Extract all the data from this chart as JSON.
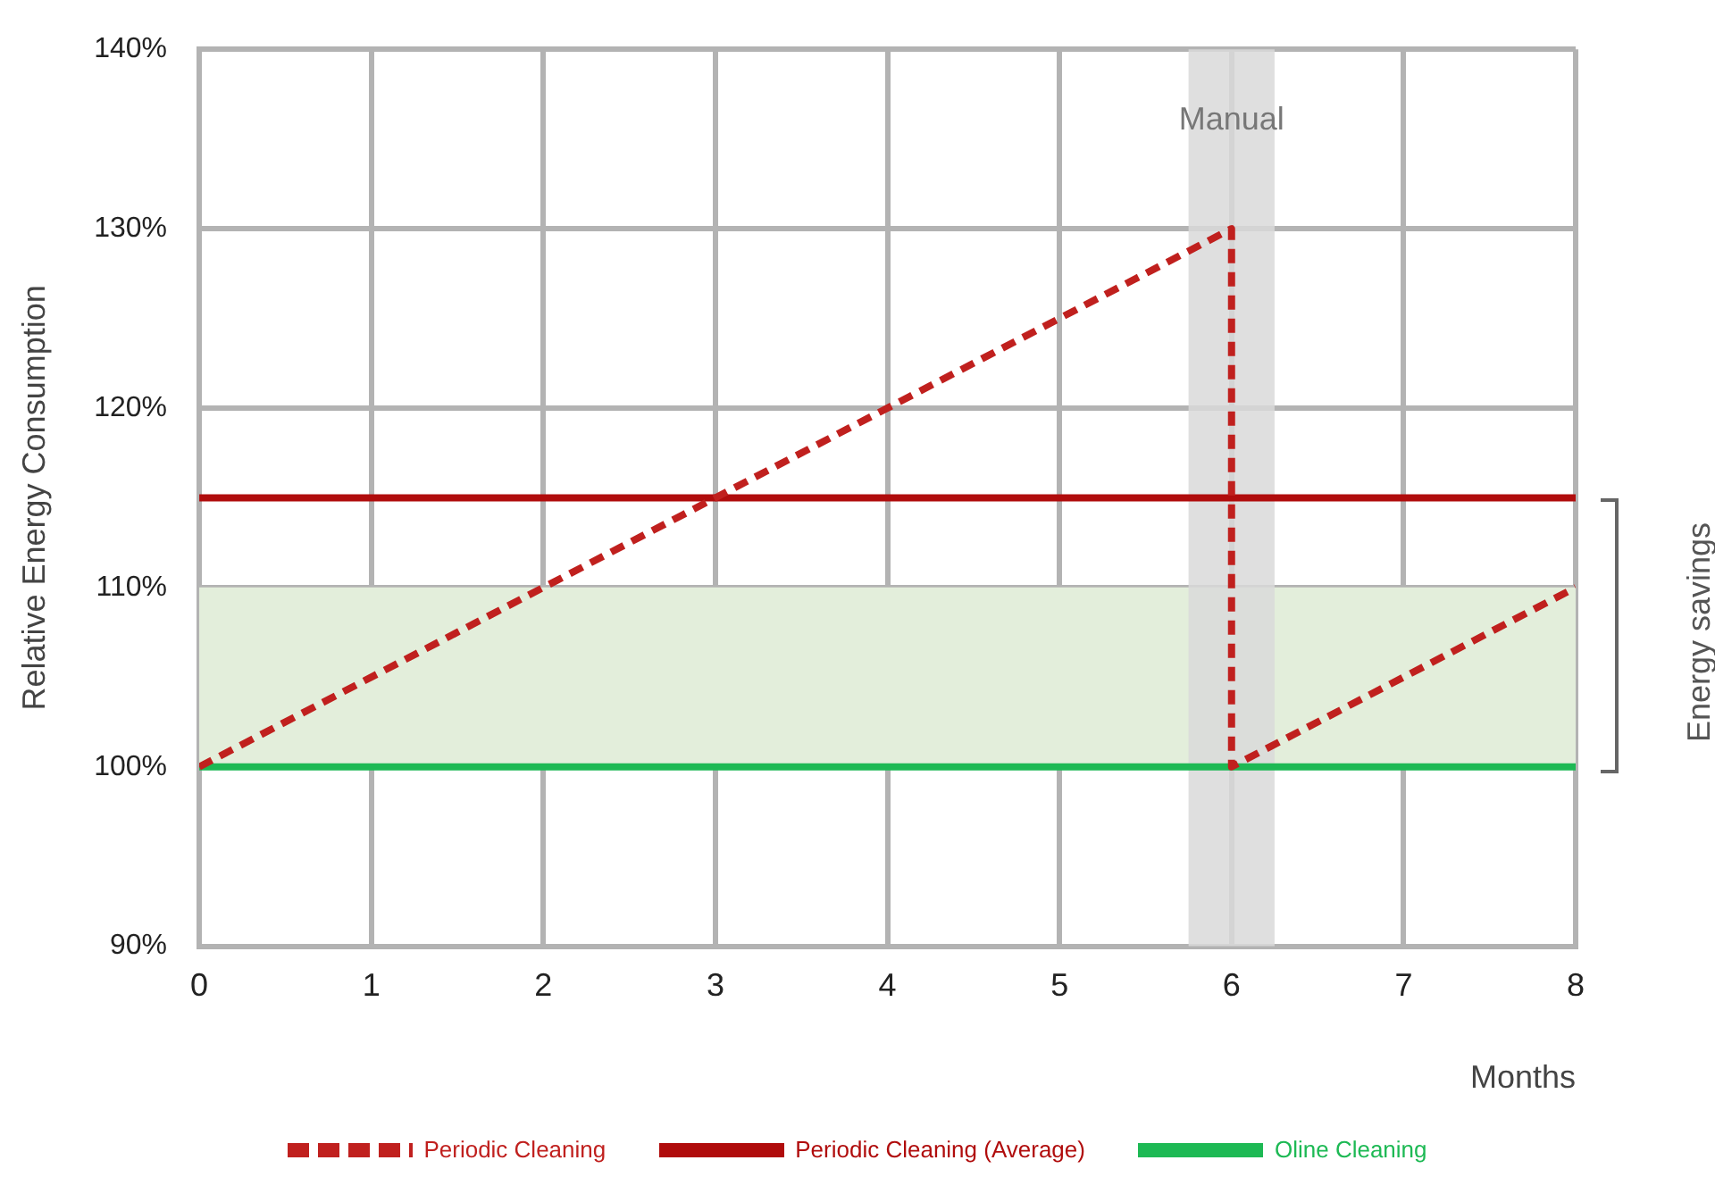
{
  "chart_data": {
    "type": "line",
    "xlabel": "Months",
    "ylabel": "Relative Energy Consumption",
    "xlim": [
      0,
      8
    ],
    "xticks": [
      0,
      1,
      2,
      3,
      4,
      5,
      6,
      7,
      8
    ],
    "ylim": [
      90,
      140
    ],
    "yticks": [
      {
        "value": 90,
        "label": "90%"
      },
      {
        "value": 100,
        "label": "100%"
      },
      {
        "value": 110,
        "label": "110%"
      },
      {
        "value": 120,
        "label": "120%"
      },
      {
        "value": 130,
        "label": "130%"
      },
      {
        "value": 140,
        "label": "140%"
      }
    ],
    "grid": true,
    "legend": "bottom",
    "marker": "none",
    "series": [
      {
        "name": "Periodic Cleaning",
        "color": "#c0201e",
        "x": [
          0,
          6,
          6,
          8
        ],
        "values": [
          100,
          130,
          100,
          110
        ],
        "line_style": "dashed"
      },
      {
        "name": "Periodic Cleaning (Average)",
        "color": "#b00c0c",
        "x": [
          0,
          8
        ],
        "values": [
          115,
          115
        ],
        "line_style": "solid"
      },
      {
        "name": "Oline Cleaning",
        "color": "#1db954",
        "x": [
          0,
          8
        ],
        "values": [
          100,
          100
        ],
        "line_style": "solid"
      }
    ],
    "bands": [
      {
        "axis": "y",
        "from": 100,
        "to": 110,
        "color": "#e3eedb"
      },
      {
        "axis": "x",
        "from": 5.75,
        "to": 6.25,
        "label": "Manual",
        "color": "#d9d9d9"
      }
    ],
    "annotations": [
      "Energy savings"
    ]
  }
}
